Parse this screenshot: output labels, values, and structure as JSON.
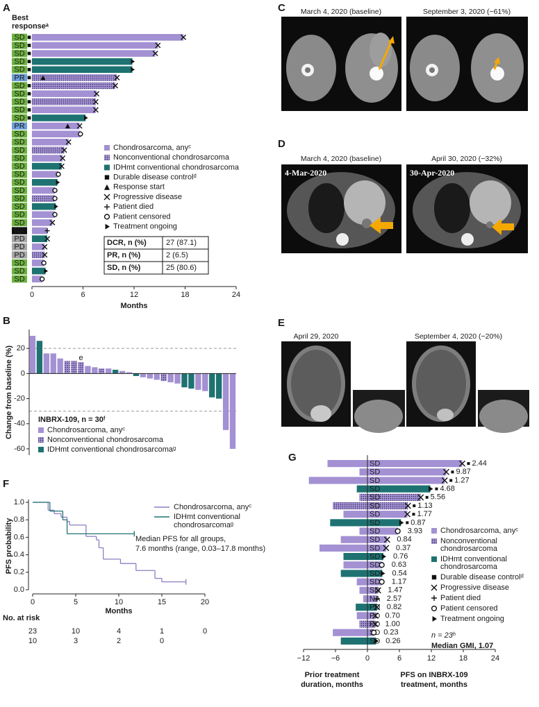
{
  "chart_data": [
    {
      "type": "swimmer",
      "label": "A",
      "y_title": "Best responseᵃ",
      "x_label": "Months",
      "xlim": [
        0,
        24
      ],
      "xticks": [
        0,
        6,
        12,
        18,
        24
      ],
      "categories": [
        "SD",
        "SD",
        "SD",
        "SD",
        "SD",
        "PR",
        "SD",
        "SD",
        "SD",
        "SD",
        "SD",
        "PR",
        "SD",
        "SD",
        "SD",
        "SD",
        "SD",
        "SD",
        "SD",
        "SD",
        "SD",
        "SD",
        "SD",
        "SD",
        "NA",
        "PD",
        "PD",
        "PD",
        "SD",
        "SD",
        "SD"
      ],
      "category_colors": {
        "SD": "#6cb33e",
        "PR": "#6e9fd8",
        "NA": "#111111",
        "PD": "#a6a6a6"
      },
      "series": [
        {
          "name": "Chondrosarcoma, anyᶜ",
          "color": "#a391d3",
          "values": [
            17.8,
            14.8,
            14.5,
            null,
            null,
            null,
            null,
            7.6,
            null,
            7.5,
            null,
            5.6,
            5.7,
            4.3,
            null,
            3.6,
            null,
            3.1,
            null,
            2.7,
            null,
            null,
            2.7,
            2.4,
            1.8,
            null,
            1.5,
            null,
            1.4,
            null,
            1.2
          ]
        },
        {
          "name": "Nonconventional chondrosarcoma",
          "color": "#a391d3",
          "pattern": "dots",
          "values": [
            null,
            null,
            null,
            null,
            null,
            10.0,
            9.8,
            null,
            7.5,
            null,
            null,
            null,
            null,
            null,
            3.8,
            null,
            null,
            null,
            null,
            null,
            2.7,
            null,
            null,
            null,
            null,
            null,
            null,
            1.5,
            null,
            null,
            null
          ]
        },
        {
          "name": "IDHmt conventional chondrosarcoma",
          "color": "#1e7272",
          "values": [
            null,
            null,
            null,
            11.8,
            11.8,
            null,
            null,
            null,
            null,
            null,
            6.3,
            null,
            null,
            null,
            null,
            null,
            3.5,
            null,
            3.0,
            null,
            null,
            2.8,
            null,
            null,
            null,
            1.8,
            null,
            null,
            null,
            1.6,
            null
          ]
        }
      ],
      "events": [
        {
          "name": "Durable disease controlᵈ",
          "symbol": "square",
          "flags": [
            true,
            true,
            true,
            true,
            true,
            true,
            true,
            true,
            true,
            true,
            true,
            false,
            false,
            false,
            false,
            false,
            false,
            false,
            false,
            false,
            false,
            false,
            false,
            false,
            false,
            false,
            false,
            false,
            false,
            false,
            false
          ]
        },
        {
          "name": "Response start",
          "symbol": "triangle",
          "values": [
            null,
            null,
            null,
            null,
            null,
            1.3,
            null,
            null,
            null,
            null,
            null,
            4.2,
            null,
            null,
            null,
            null,
            null,
            null,
            null,
            null,
            null,
            null,
            null,
            null,
            null,
            null,
            null,
            null,
            null,
            null,
            null
          ]
        },
        {
          "name": "Progressive disease",
          "symbol": "cross",
          "values": [
            17.8,
            14.8,
            14.5,
            null,
            null,
            10.0,
            9.8,
            7.6,
            7.5,
            7.5,
            null,
            5.6,
            null,
            4.3,
            3.8,
            3.6,
            3.5,
            null,
            null,
            null,
            null,
            null,
            null,
            2.4,
            null,
            1.8,
            1.5,
            1.5,
            null,
            null,
            null
          ]
        },
        {
          "name": "Patient died",
          "symbol": "plus",
          "values": [
            null,
            null,
            null,
            null,
            null,
            null,
            null,
            null,
            null,
            null,
            null,
            null,
            null,
            null,
            null,
            null,
            null,
            null,
            null,
            null,
            null,
            null,
            null,
            null,
            1.8,
            null,
            null,
            null,
            null,
            null,
            null
          ]
        },
        {
          "name": "Patient censored",
          "symbol": "circle",
          "values": [
            null,
            null,
            null,
            null,
            null,
            null,
            null,
            null,
            null,
            null,
            null,
            null,
            5.7,
            null,
            null,
            null,
            null,
            3.1,
            null,
            2.7,
            2.7,
            null,
            2.7,
            null,
            null,
            null,
            null,
            null,
            1.4,
            null,
            1.2
          ]
        },
        {
          "name": "Treatment ongoing",
          "symbol": "play",
          "values": [
            null,
            null,
            null,
            11.8,
            11.8,
            null,
            null,
            null,
            null,
            null,
            6.3,
            null,
            null,
            null,
            null,
            null,
            null,
            null,
            3.0,
            null,
            null,
            2.8,
            null,
            null,
            null,
            null,
            null,
            null,
            null,
            1.6,
            null
          ]
        }
      ],
      "table": [
        [
          "DCR, n (%)",
          "27 (87.1)"
        ],
        [
          "PR, n (%)",
          "2 (6.5)"
        ],
        [
          "SD, n (%)",
          "25 (80.6)"
        ]
      ]
    },
    {
      "type": "waterfall",
      "label": "B",
      "y_label": "Change from baseline (%)",
      "ylim": [
        -65,
        35
      ],
      "yticks": [
        -60,
        -40,
        -20,
        0,
        20
      ],
      "reference_lines": [
        20,
        -30
      ],
      "legend_title": "INBRX-109, n = 30ᶠ",
      "series": [
        {
          "name": "Chondrosarcoma, anyᶜ",
          "color": "#a391d3",
          "values": [
            30,
            null,
            16,
            16,
            12,
            null,
            null,
            null,
            6,
            5,
            null,
            4,
            null,
            2,
            1,
            null,
            -3,
            -4,
            -5,
            null,
            -7,
            -8,
            null,
            null,
            -13,
            -14,
            null,
            null,
            -45,
            -60
          ]
        },
        {
          "name": "Nonconventional chondrosarcoma",
          "color": "#a391d3",
          "pattern": "dots",
          "values": [
            null,
            null,
            null,
            null,
            null,
            10,
            10,
            9,
            null,
            null,
            4,
            null,
            null,
            null,
            null,
            null,
            null,
            null,
            null,
            -6,
            null,
            null,
            null,
            null,
            null,
            null,
            null,
            null,
            null,
            null
          ]
        },
        {
          "name": "IDHmt conventional chondrosarcomaᵍ",
          "color": "#1e7272",
          "values": [
            null,
            26,
            null,
            null,
            null,
            null,
            null,
            null,
            null,
            null,
            null,
            null,
            3,
            null,
            null,
            -2,
            null,
            null,
            null,
            null,
            null,
            null,
            -11,
            -12,
            null,
            null,
            -19,
            -20,
            null,
            null
          ]
        }
      ],
      "bar_notes": [
        null,
        null,
        null,
        null,
        null,
        null,
        null,
        "e",
        null,
        null,
        null,
        null,
        null,
        null,
        null,
        null,
        null,
        null,
        null,
        null,
        null,
        null,
        null,
        null,
        null,
        null,
        null,
        null,
        null,
        null
      ]
    },
    {
      "type": "survival",
      "label": "F",
      "x_label": "Months",
      "y_label": "PFS probability",
      "xlim": [
        0,
        20
      ],
      "xticks": [
        0,
        5,
        10,
        15,
        20
      ],
      "ylim": [
        0,
        1
      ],
      "yticks": [
        {
          "value": 0,
          "label": "0.0"
        },
        {
          "value": 0.2,
          "label": "0.2"
        },
        {
          "value": 0.4,
          "label": "0.4"
        },
        {
          "value": 0.6,
          "label": "0.6"
        },
        {
          "value": 0.8,
          "label": "0.8"
        },
        {
          "value": 1,
          "label": "1.0"
        }
      ],
      "annotation": [
        "Median PFS for all groups,",
        "7.6 months (range, 0.03–17.8 months)"
      ],
      "at_risk_title": "No. at risk",
      "series": [
        {
          "name": "Chondrosarcoma, anyᶜ",
          "color": "#8e7cc3",
          "x": [
            0,
            1.8,
            2.5,
            3.3,
            4.0,
            4.3,
            6.2,
            7.4,
            7.7,
            8.2,
            10.2,
            12.0,
            14.2,
            15.0,
            17.8
          ],
          "values": [
            1,
            0.91,
            0.87,
            0.83,
            0.78,
            0.74,
            0.61,
            0.57,
            0.48,
            0.35,
            0.3,
            0.22,
            0.13,
            0.09,
            0.09
          ],
          "at_risk": [
            23,
            10,
            4,
            1,
            0
          ]
        },
        {
          "name": "IDHmt conventional chondrosarcomaᵍ",
          "color": "#1e7272",
          "x": [
            0,
            2,
            3.5,
            4,
            11.8
          ],
          "values": [
            1,
            0.9,
            0.8,
            0.64,
            0.64
          ],
          "at_risk": [
            10,
            3,
            2,
            0
          ]
        }
      ]
    },
    {
      "type": "butterfly",
      "label": "G",
      "xlim": [
        -12,
        24
      ],
      "xticks": [
        {
          "value": -12,
          "label": "−12"
        },
        {
          "value": -6,
          "label": "−6"
        },
        0,
        6,
        12,
        18,
        24
      ],
      "x_label_left": [
        "Prior treatment",
        "duration, months"
      ],
      "x_label_right": [
        "PFS on INBRX-109",
        "treatment, months"
      ],
      "categories": [
        "SD",
        "SD",
        "SD",
        "SD",
        "SD",
        "SD",
        "SD",
        "SD",
        "SD",
        "SD",
        "SD",
        "SD",
        "SD",
        "SD",
        "SD",
        "SD",
        "NA",
        "PD",
        "PD",
        "PD",
        "SD",
        "SD"
      ],
      "series": [
        {
          "name": "Chondrosarcoma, anyᶜ",
          "color": "#a391d3",
          "prior": [
            -7.5,
            -1.5,
            -11,
            null,
            null,
            null,
            -4.5,
            null,
            -1.5,
            -5,
            -9,
            null,
            -4.5,
            null,
            -2,
            -1.5,
            -0.8,
            null,
            -2,
            null,
            -6.5,
            null
          ],
          "values": [
            17.8,
            14.8,
            14.5,
            null,
            null,
            null,
            7.5,
            null,
            5.7,
            3.7,
            3.5,
            null,
            2.7,
            null,
            2.7,
            2.0,
            1.8,
            null,
            1.5,
            null,
            1.2,
            null
          ]
        },
        {
          "name": "Nonconventional chondrosarcoma",
          "color": "#a391d3",
          "pattern": "dots",
          "prior": [
            null,
            null,
            null,
            null,
            -1.5,
            -6.5,
            null,
            null,
            null,
            null,
            null,
            null,
            null,
            null,
            null,
            null,
            null,
            null,
            null,
            -1.5,
            null,
            null
          ],
          "values": [
            null,
            null,
            null,
            null,
            10.0,
            7.6,
            null,
            null,
            null,
            null,
            null,
            null,
            null,
            null,
            null,
            null,
            null,
            null,
            null,
            1.5,
            null,
            null
          ]
        },
        {
          "name": "IDHmt conventional chondrosarcoma",
          "color": "#1e7272",
          "prior": [
            null,
            null,
            null,
            -2,
            null,
            null,
            null,
            -7,
            null,
            null,
            null,
            -4.5,
            null,
            -5,
            null,
            null,
            null,
            -2.2,
            null,
            null,
            null,
            -5
          ],
          "values": [
            null,
            null,
            null,
            11.8,
            null,
            null,
            null,
            6.3,
            null,
            null,
            null,
            3.0,
            null,
            2.8,
            null,
            null,
            null,
            1.8,
            null,
            null,
            null,
            1.6
          ]
        }
      ],
      "events": [
        {
          "name": "Durable disease controlᵈ",
          "symbol": "square",
          "flags": [
            true,
            true,
            true,
            true,
            true,
            true,
            true,
            true,
            false,
            false,
            false,
            false,
            false,
            false,
            false,
            false,
            false,
            false,
            false,
            false,
            false,
            false
          ]
        },
        {
          "name": "Progressive disease",
          "symbol": "cross",
          "values": [
            17.8,
            14.8,
            14.5,
            null,
            10.0,
            7.6,
            7.5,
            null,
            null,
            3.7,
            3.5,
            null,
            null,
            null,
            null,
            2.0,
            null,
            1.8,
            1.5,
            1.5,
            null,
            null
          ]
        },
        {
          "name": "Patient died",
          "symbol": "plus",
          "values": [
            null,
            null,
            null,
            null,
            null,
            null,
            null,
            null,
            null,
            null,
            null,
            null,
            null,
            null,
            null,
            null,
            1.8,
            null,
            null,
            null,
            null,
            null
          ]
        },
        {
          "name": "Patient censored",
          "symbol": "circle",
          "values": [
            null,
            null,
            null,
            null,
            null,
            null,
            null,
            null,
            5.7,
            null,
            null,
            null,
            2.7,
            null,
            2.7,
            null,
            null,
            null,
            null,
            null,
            1.2,
            null
          ]
        },
        {
          "name": "Treatment ongoing",
          "symbol": "play",
          "values": [
            null,
            null,
            null,
            11.8,
            null,
            null,
            null,
            6.3,
            null,
            null,
            null,
            3.0,
            null,
            2.8,
            null,
            null,
            null,
            null,
            null,
            null,
            null,
            1.6
          ]
        }
      ],
      "gmi_labels": [
        "2.44",
        "9.87",
        "1.27",
        "4.68",
        "5.56",
        "1.13",
        "1.77",
        "0.87",
        "3.93",
        "0.84",
        "0.37",
        "0.76",
        "0.63",
        "0.54",
        "1.17",
        "1.47",
        "2.57",
        "0.82",
        "0.70",
        "1.00",
        "0.23",
        "0.26"
      ],
      "note": "n = 23ʰ",
      "summary": "Median GMI, 1.07"
    }
  ],
  "images": [
    {
      "label": "C",
      "captions": [
        "March 4, 2020 (baseline)",
        "September 3, 2020 (−61%)"
      ]
    },
    {
      "label": "D",
      "captions": [
        "March 4, 2020 (baseline)",
        "April 30, 2020 (−32%)"
      ],
      "stamps": [
        "4-Mar-2020",
        "30-Apr-2020"
      ]
    },
    {
      "label": "E",
      "captions": [
        "April 29, 2020",
        "September 4, 2020 (−20%)"
      ]
    }
  ]
}
